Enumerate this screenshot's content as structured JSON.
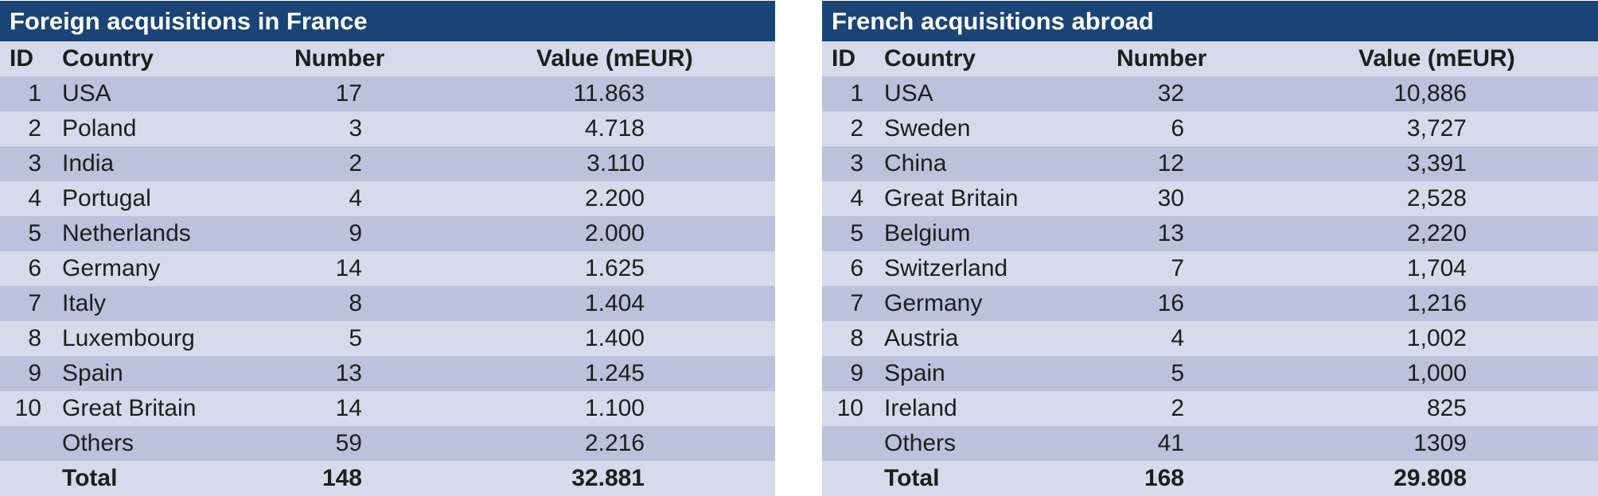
{
  "tables": [
    {
      "title": "Foreign acquisitions in France",
      "headers": {
        "id": "ID",
        "country": "Country",
        "number": "Number",
        "value": "Value (mEUR)"
      },
      "rows": [
        {
          "id": "1",
          "country": "USA",
          "number": "17",
          "value": "11.863"
        },
        {
          "id": "2",
          "country": "Poland",
          "number": "3",
          "value": "4.718"
        },
        {
          "id": "3",
          "country": "India",
          "number": "2",
          "value": "3.110"
        },
        {
          "id": "4",
          "country": "Portugal",
          "number": "4",
          "value": "2.200"
        },
        {
          "id": "5",
          "country": "Netherlands",
          "number": "9",
          "value": "2.000"
        },
        {
          "id": "6",
          "country": "Germany",
          "number": "14",
          "value": "1.625"
        },
        {
          "id": "7",
          "country": "Italy",
          "number": "8",
          "value": "1.404"
        },
        {
          "id": "8",
          "country": "Luxembourg",
          "number": "5",
          "value": "1.400"
        },
        {
          "id": "9",
          "country": "Spain",
          "number": "13",
          "value": "1.245"
        },
        {
          "id": "10",
          "country": "Great Britain",
          "number": "14",
          "value": "1.100"
        },
        {
          "id": "",
          "country": "Others",
          "number": "59",
          "value": "2.216"
        }
      ],
      "total": {
        "label": "Total",
        "number": "148",
        "value": "32.881"
      }
    },
    {
      "title": "French acquisitions abroad",
      "headers": {
        "id": "ID",
        "country": "Country",
        "number": "Number",
        "value": "Value (mEUR)"
      },
      "rows": [
        {
          "id": "1",
          "country": "USA",
          "number": "32",
          "value": "10,886"
        },
        {
          "id": "2",
          "country": "Sweden",
          "number": "6",
          "value": "3,727"
        },
        {
          "id": "3",
          "country": "China",
          "number": "12",
          "value": "3,391"
        },
        {
          "id": "4",
          "country": "Great Britain",
          "number": "30",
          "value": "2,528"
        },
        {
          "id": "5",
          "country": "Belgium",
          "number": "13",
          "value": "2,220"
        },
        {
          "id": "6",
          "country": "Switzerland",
          "number": "7",
          "value": "1,704"
        },
        {
          "id": "7",
          "country": "Germany",
          "number": "16",
          "value": "1,216"
        },
        {
          "id": "8",
          "country": "Austria",
          "number": "4",
          "value": "1,002"
        },
        {
          "id": "9",
          "country": "Spain",
          "number": "5",
          "value": "1,000"
        },
        {
          "id": "10",
          "country": "Ireland",
          "number": "2",
          "value": "825"
        },
        {
          "id": "",
          "country": "Others",
          "number": "41",
          "value": "1309"
        }
      ],
      "total": {
        "label": "Total",
        "number": "168",
        "value": "29.808"
      }
    }
  ],
  "colors": {
    "title_bar": "#1a4476",
    "row_light": "#d6daea",
    "row_dark": "#bcc1dc",
    "title_text": "#ffffff",
    "body_text": "#1e1e1e"
  }
}
